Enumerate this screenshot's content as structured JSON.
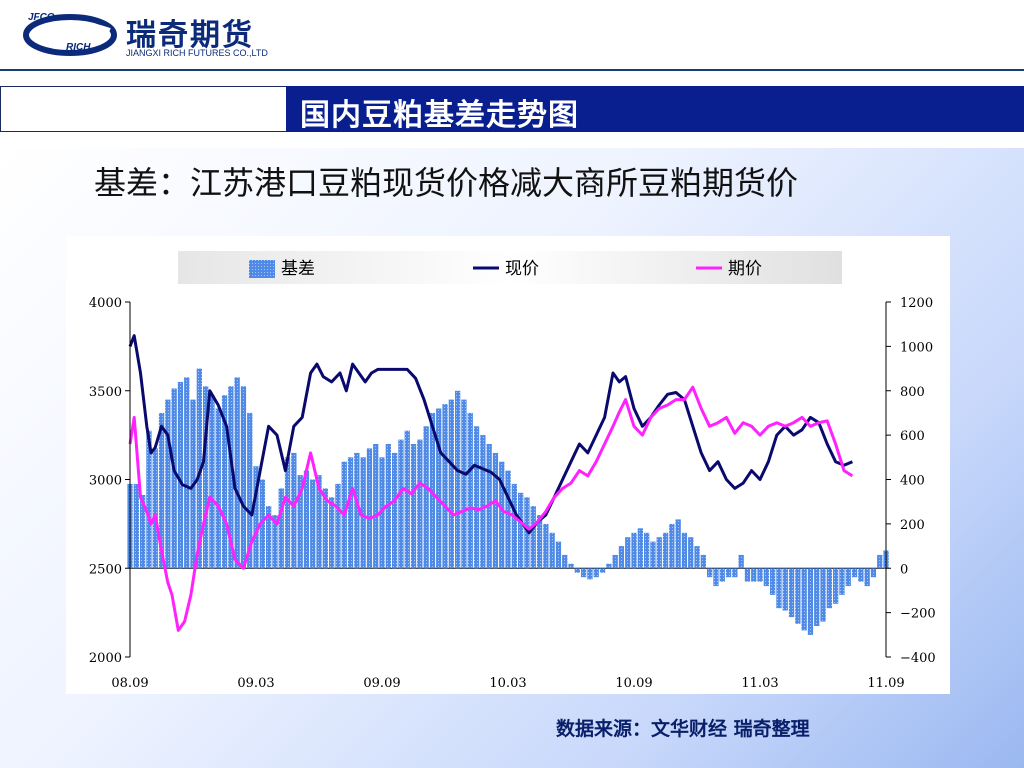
{
  "header": {
    "logo_mark_top": "JFCO",
    "logo_mark_bottom": "RICH",
    "company_name": "瑞奇期货",
    "company_name_en": "JIANGXI RICH FUTURES CO.,LTD"
  },
  "page_title": "国内豆粕基差走势图",
  "subtitle": "基差：江苏港口豆粕现货价格减大商所豆粕期货价",
  "source_note": "数据来源：文华财经 瑞奇整理",
  "colors": {
    "basis": "#3a78e0",
    "spot": "#0a0a6e",
    "futures": "#ff22ff",
    "title_band": "#0a1f8f"
  },
  "chart_data": {
    "type": "bar+line",
    "legend": {
      "placement": "top",
      "items": [
        "基差",
        "现价",
        "期价"
      ]
    },
    "x_ticks": [
      "08.09",
      "09.03",
      "09.09",
      "10.03",
      "10.09",
      "11.03",
      "11.09"
    ],
    "y_left": {
      "ylim": [
        2000,
        4000
      ],
      "ticks": [
        2000,
        2500,
        3000,
        3500,
        4000
      ]
    },
    "y_right": {
      "ylim": [
        -400,
        1200
      ],
      "ticks": [
        -400,
        -200,
        0,
        200,
        400,
        600,
        800,
        1000,
        1200
      ]
    },
    "x_range": [
      0,
      36
    ],
    "series": [
      {
        "name": "基差",
        "type": "bar",
        "axis": "right",
        "points": [
          [
            0.0,
            380
          ],
          [
            0.3,
            380
          ],
          [
            0.6,
            330
          ],
          [
            0.9,
            620
          ],
          [
            1.2,
            540
          ],
          [
            1.5,
            700
          ],
          [
            1.8,
            760
          ],
          [
            2.1,
            810
          ],
          [
            2.4,
            840
          ],
          [
            2.7,
            860
          ],
          [
            3.0,
            760
          ],
          [
            3.3,
            900
          ],
          [
            3.6,
            820
          ],
          [
            3.9,
            780
          ],
          [
            4.2,
            720
          ],
          [
            4.5,
            780
          ],
          [
            4.8,
            820
          ],
          [
            5.1,
            860
          ],
          [
            5.4,
            820
          ],
          [
            5.7,
            700
          ],
          [
            6.0,
            460
          ],
          [
            6.3,
            400
          ],
          [
            6.6,
            280
          ],
          [
            6.9,
            240
          ],
          [
            7.2,
            360
          ],
          [
            7.5,
            500
          ],
          [
            7.8,
            520
          ],
          [
            8.1,
            420
          ],
          [
            8.4,
            440
          ],
          [
            8.7,
            400
          ],
          [
            9.0,
            420
          ],
          [
            9.3,
            360
          ],
          [
            9.6,
            320
          ],
          [
            9.9,
            380
          ],
          [
            10.2,
            480
          ],
          [
            10.5,
            500
          ],
          [
            10.8,
            520
          ],
          [
            11.1,
            500
          ],
          [
            11.4,
            540
          ],
          [
            11.7,
            560
          ],
          [
            12.0,
            500
          ],
          [
            12.3,
            560
          ],
          [
            12.6,
            520
          ],
          [
            12.9,
            580
          ],
          [
            13.2,
            620
          ],
          [
            13.5,
            560
          ],
          [
            13.8,
            580
          ],
          [
            14.1,
            640
          ],
          [
            14.4,
            700
          ],
          [
            14.7,
            720
          ],
          [
            15.0,
            740
          ],
          [
            15.3,
            760
          ],
          [
            15.6,
            800
          ],
          [
            15.9,
            760
          ],
          [
            16.2,
            700
          ],
          [
            16.5,
            640
          ],
          [
            16.8,
            600
          ],
          [
            17.1,
            560
          ],
          [
            17.4,
            520
          ],
          [
            17.7,
            480
          ],
          [
            18.0,
            440
          ],
          [
            18.3,
            380
          ],
          [
            18.6,
            340
          ],
          [
            18.9,
            320
          ],
          [
            19.2,
            280
          ],
          [
            19.5,
            240
          ],
          [
            19.8,
            200
          ],
          [
            20.1,
            160
          ],
          [
            20.4,
            120
          ],
          [
            20.7,
            60
          ],
          [
            21.0,
            20
          ],
          [
            21.3,
            -20
          ],
          [
            21.6,
            -40
          ],
          [
            21.9,
            -50
          ],
          [
            22.2,
            -40
          ],
          [
            22.5,
            -20
          ],
          [
            22.8,
            20
          ],
          [
            23.1,
            60
          ],
          [
            23.4,
            100
          ],
          [
            23.7,
            140
          ],
          [
            24.0,
            160
          ],
          [
            24.3,
            180
          ],
          [
            24.6,
            160
          ],
          [
            24.9,
            120
          ],
          [
            25.2,
            140
          ],
          [
            25.5,
            160
          ],
          [
            25.8,
            200
          ],
          [
            26.1,
            220
          ],
          [
            26.4,
            160
          ],
          [
            26.7,
            140
          ],
          [
            27.0,
            100
          ],
          [
            27.3,
            60
          ],
          [
            27.6,
            -40
          ],
          [
            27.9,
            -80
          ],
          [
            28.2,
            -60
          ],
          [
            28.5,
            -40
          ],
          [
            28.8,
            -40
          ],
          [
            29.1,
            60
          ],
          [
            29.4,
            -60
          ],
          [
            29.7,
            -60
          ],
          [
            30.0,
            -60
          ],
          [
            30.3,
            -80
          ],
          [
            30.6,
            -120
          ],
          [
            30.9,
            -180
          ],
          [
            31.2,
            -190
          ],
          [
            31.5,
            -220
          ],
          [
            31.8,
            -250
          ],
          [
            32.1,
            -280
          ],
          [
            32.4,
            -300
          ],
          [
            32.7,
            -260
          ],
          [
            33.0,
            -240
          ],
          [
            33.3,
            -180
          ],
          [
            33.6,
            -160
          ],
          [
            33.9,
            -120
          ],
          [
            34.2,
            -80
          ],
          [
            34.5,
            -40
          ],
          [
            34.8,
            -60
          ],
          [
            35.1,
            -80
          ],
          [
            35.4,
            -40
          ],
          [
            35.7,
            60
          ],
          [
            36.0,
            80
          ]
        ]
      },
      {
        "name": "现价",
        "type": "line",
        "axis": "left",
        "points": [
          [
            0.0,
            3750
          ],
          [
            0.2,
            3810
          ],
          [
            0.5,
            3600
          ],
          [
            0.8,
            3300
          ],
          [
            1.0,
            3150
          ],
          [
            1.2,
            3180
          ],
          [
            1.5,
            3300
          ],
          [
            1.8,
            3250
          ],
          [
            2.1,
            3050
          ],
          [
            2.5,
            2970
          ],
          [
            2.9,
            2950
          ],
          [
            3.2,
            3000
          ],
          [
            3.5,
            3100
          ],
          [
            3.8,
            3500
          ],
          [
            4.2,
            3420
          ],
          [
            4.6,
            3300
          ],
          [
            5.0,
            2950
          ],
          [
            5.4,
            2850
          ],
          [
            5.8,
            2800
          ],
          [
            6.2,
            3050
          ],
          [
            6.6,
            3300
          ],
          [
            7.0,
            3250
          ],
          [
            7.4,
            3050
          ],
          [
            7.8,
            3300
          ],
          [
            8.2,
            3350
          ],
          [
            8.6,
            3600
          ],
          [
            8.9,
            3650
          ],
          [
            9.2,
            3580
          ],
          [
            9.6,
            3550
          ],
          [
            10.0,
            3600
          ],
          [
            10.3,
            3500
          ],
          [
            10.6,
            3650
          ],
          [
            10.9,
            3600
          ],
          [
            11.2,
            3550
          ],
          [
            11.5,
            3600
          ],
          [
            11.8,
            3620
          ],
          [
            12.1,
            3620
          ],
          [
            12.6,
            3620
          ],
          [
            13.2,
            3620
          ],
          [
            13.6,
            3570
          ],
          [
            14.0,
            3450
          ],
          [
            14.4,
            3300
          ],
          [
            14.8,
            3150
          ],
          [
            15.2,
            3100
          ],
          [
            15.6,
            3050
          ],
          [
            16.0,
            3030
          ],
          [
            16.4,
            3080
          ],
          [
            16.8,
            3060
          ],
          [
            17.2,
            3040
          ],
          [
            17.6,
            3000
          ],
          [
            18.0,
            2900
          ],
          [
            18.4,
            2800
          ],
          [
            18.7,
            2750
          ],
          [
            19.0,
            2700
          ],
          [
            19.4,
            2760
          ],
          [
            19.8,
            2800
          ],
          [
            20.2,
            2900
          ],
          [
            20.6,
            3000
          ],
          [
            21.0,
            3100
          ],
          [
            21.4,
            3200
          ],
          [
            21.8,
            3150
          ],
          [
            22.2,
            3250
          ],
          [
            22.6,
            3350
          ],
          [
            23.0,
            3600
          ],
          [
            23.3,
            3550
          ],
          [
            23.6,
            3580
          ],
          [
            24.0,
            3400
          ],
          [
            24.4,
            3300
          ],
          [
            24.8,
            3350
          ],
          [
            25.2,
            3420
          ],
          [
            25.6,
            3480
          ],
          [
            26.0,
            3490
          ],
          [
            26.4,
            3450
          ],
          [
            26.8,
            3300
          ],
          [
            27.2,
            3150
          ],
          [
            27.6,
            3050
          ],
          [
            28.0,
            3100
          ],
          [
            28.4,
            3000
          ],
          [
            28.8,
            2950
          ],
          [
            29.2,
            2980
          ],
          [
            29.6,
            3050
          ],
          [
            30.0,
            3000
          ],
          [
            30.4,
            3100
          ],
          [
            30.8,
            3250
          ],
          [
            31.2,
            3300
          ],
          [
            31.6,
            3250
          ],
          [
            32.0,
            3280
          ],
          [
            32.4,
            3350
          ],
          [
            32.8,
            3320
          ],
          [
            33.2,
            3200
          ],
          [
            33.6,
            3100
          ],
          [
            34.0,
            3080
          ],
          [
            34.4,
            3100
          ]
        ]
      },
      {
        "name": "期价",
        "type": "line",
        "axis": "left",
        "points": [
          [
            0.0,
            3200
          ],
          [
            0.2,
            3350
          ],
          [
            0.5,
            2900
          ],
          [
            0.8,
            2820
          ],
          [
            1.0,
            2750
          ],
          [
            1.2,
            2800
          ],
          [
            1.5,
            2600
          ],
          [
            1.8,
            2420
          ],
          [
            2.0,
            2350
          ],
          [
            2.3,
            2150
          ],
          [
            2.6,
            2200
          ],
          [
            2.9,
            2350
          ],
          [
            3.2,
            2580
          ],
          [
            3.5,
            2750
          ],
          [
            3.8,
            2900
          ],
          [
            4.2,
            2850
          ],
          [
            4.6,
            2750
          ],
          [
            5.0,
            2550
          ],
          [
            5.4,
            2500
          ],
          [
            5.8,
            2650
          ],
          [
            6.2,
            2750
          ],
          [
            6.6,
            2800
          ],
          [
            7.0,
            2750
          ],
          [
            7.4,
            2900
          ],
          [
            7.8,
            2850
          ],
          [
            8.2,
            2950
          ],
          [
            8.6,
            3150
          ],
          [
            9.0,
            2950
          ],
          [
            9.4,
            2880
          ],
          [
            9.8,
            2850
          ],
          [
            10.2,
            2800
          ],
          [
            10.6,
            2950
          ],
          [
            11.0,
            2800
          ],
          [
            11.4,
            2780
          ],
          [
            11.8,
            2800
          ],
          [
            12.2,
            2850
          ],
          [
            12.6,
            2880
          ],
          [
            13.0,
            2950
          ],
          [
            13.4,
            2920
          ],
          [
            13.8,
            2980
          ],
          [
            14.2,
            2950
          ],
          [
            14.6,
            2900
          ],
          [
            15.0,
            2850
          ],
          [
            15.4,
            2800
          ],
          [
            15.8,
            2820
          ],
          [
            16.2,
            2840
          ],
          [
            16.6,
            2830
          ],
          [
            17.0,
            2850
          ],
          [
            17.4,
            2880
          ],
          [
            17.8,
            2820
          ],
          [
            18.2,
            2800
          ],
          [
            18.6,
            2760
          ],
          [
            19.0,
            2720
          ],
          [
            19.4,
            2760
          ],
          [
            19.8,
            2820
          ],
          [
            20.2,
            2900
          ],
          [
            20.6,
            2950
          ],
          [
            21.0,
            2980
          ],
          [
            21.4,
            3050
          ],
          [
            21.8,
            3020
          ],
          [
            22.2,
            3100
          ],
          [
            22.6,
            3200
          ],
          [
            23.0,
            3300
          ],
          [
            23.3,
            3380
          ],
          [
            23.6,
            3450
          ],
          [
            24.0,
            3300
          ],
          [
            24.4,
            3250
          ],
          [
            24.8,
            3350
          ],
          [
            25.2,
            3400
          ],
          [
            25.6,
            3420
          ],
          [
            26.0,
            3450
          ],
          [
            26.4,
            3450
          ],
          [
            26.8,
            3520
          ],
          [
            27.2,
            3400
          ],
          [
            27.6,
            3300
          ],
          [
            28.0,
            3320
          ],
          [
            28.4,
            3350
          ],
          [
            28.8,
            3260
          ],
          [
            29.2,
            3320
          ],
          [
            29.6,
            3300
          ],
          [
            30.0,
            3250
          ],
          [
            30.4,
            3300
          ],
          [
            30.8,
            3320
          ],
          [
            31.2,
            3300
          ],
          [
            31.6,
            3320
          ],
          [
            32.0,
            3350
          ],
          [
            32.4,
            3300
          ],
          [
            32.8,
            3320
          ],
          [
            33.2,
            3330
          ],
          [
            33.6,
            3200
          ],
          [
            34.0,
            3050
          ],
          [
            34.4,
            3020
          ]
        ]
      }
    ]
  }
}
